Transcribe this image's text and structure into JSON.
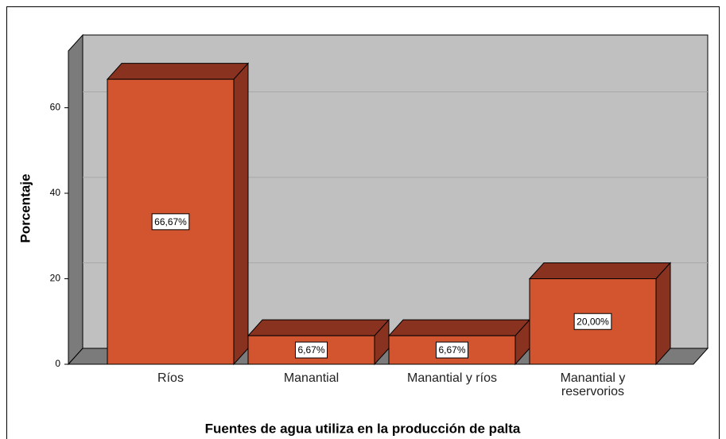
{
  "chart_data": {
    "type": "bar3d",
    "x_label": "Fuentes de agua utiliza en la producción de palta",
    "y_label": "Porcentaje",
    "categories": [
      "Ríos",
      "Manantial",
      "Manantial y ríos",
      "Manantial y reservorios"
    ],
    "values": [
      66.67,
      6.67,
      6.67,
      20
    ],
    "value_labels": [
      "66,67%",
      "6,67%",
      "6,67%",
      "20,00%"
    ],
    "color": "#d2552f",
    "ylim": [
      0,
      72
    ],
    "yticks": [
      0,
      20,
      40,
      60
    ],
    "grid": true
  }
}
